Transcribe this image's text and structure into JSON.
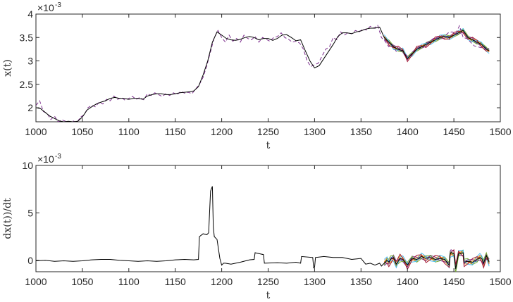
{
  "chart_data": [
    {
      "type": "line",
      "xlabel": "t",
      "ylabel": "x(t)",
      "xlim": [
        1000,
        1500
      ],
      "ylim": [
        1.7,
        4.0
      ],
      "x_ticks": [
        "1000",
        "1050",
        "1100",
        "1150",
        "1200",
        "1250",
        "1300",
        "1350",
        "1400",
        "1450",
        "1500"
      ],
      "y_ticks": [
        "2",
        "2.5",
        "3",
        "3.5",
        "4"
      ],
      "y_ticks_values": [
        2,
        2.5,
        3,
        3.5,
        4
      ],
      "exponent_base": "×10",
      "exponent_power": "-3",
      "grid": false,
      "series": [
        {
          "color": "#000000",
          "style": "solid",
          "x": [
            1000,
            1005,
            1010,
            1015,
            1020,
            1025,
            1030,
            1035,
            1040,
            1045,
            1050,
            1055,
            1060,
            1065,
            1070,
            1075,
            1080,
            1085,
            1090,
            1095,
            1100,
            1105,
            1110,
            1115,
            1120,
            1125,
            1130,
            1135,
            1140,
            1145,
            1150,
            1155,
            1160,
            1165,
            1170,
            1175,
            1180,
            1185,
            1190,
            1195,
            1200,
            1205,
            1210,
            1215,
            1220,
            1225,
            1230,
            1235,
            1240,
            1245,
            1250,
            1255,
            1260,
            1265,
            1270,
            1275,
            1280,
            1285,
            1290,
            1295,
            1300,
            1305,
            1310,
            1315,
            1320,
            1325,
            1330,
            1335,
            1340,
            1345,
            1350,
            1355,
            1360,
            1365,
            1370,
            1375,
            1380,
            1385,
            1390,
            1395,
            1400,
            1405,
            1410,
            1415,
            1420,
            1425,
            1430,
            1435,
            1440,
            1445,
            1450,
            1455,
            1460,
            1465,
            1470,
            1475,
            1480,
            1485,
            1488
          ],
          "values": [
            2.0,
            1.98,
            1.9,
            1.82,
            1.77,
            1.72,
            1.7,
            1.71,
            1.7,
            1.71,
            1.8,
            1.95,
            2.02,
            2.08,
            2.12,
            2.15,
            2.2,
            2.22,
            2.2,
            2.2,
            2.18,
            2.2,
            2.2,
            2.18,
            2.25,
            2.28,
            2.3,
            2.3,
            2.28,
            2.28,
            2.3,
            2.32,
            2.33,
            2.34,
            2.36,
            2.45,
            2.7,
            3.0,
            3.4,
            3.62,
            3.55,
            3.48,
            3.45,
            3.44,
            3.46,
            3.5,
            3.52,
            3.5,
            3.45,
            3.48,
            3.48,
            3.44,
            3.48,
            3.55,
            3.56,
            3.5,
            3.43,
            3.45,
            3.22,
            3.0,
            2.85,
            2.9,
            3.05,
            3.2,
            3.35,
            3.52,
            3.6,
            3.6,
            3.58,
            3.62,
            3.64,
            3.68,
            3.7,
            3.7,
            3.72,
            3.5,
            3.4,
            3.3,
            3.25,
            3.22,
            3.05,
            3.15,
            3.25,
            3.3,
            3.35,
            3.4,
            3.45,
            3.5,
            3.52,
            3.5,
            3.55,
            3.6,
            3.65,
            3.5,
            3.45,
            3.4,
            3.35,
            3.25,
            3.22
          ]
        },
        {
          "color": "#7E2F8E",
          "style": "dashed",
          "x": [
            1000,
            1004,
            1008,
            1012,
            1016,
            1020,
            1024,
            1028,
            1032,
            1036,
            1040,
            1044,
            1048,
            1052,
            1056,
            1060,
            1064,
            1068,
            1072,
            1076,
            1080,
            1084,
            1088,
            1092,
            1096,
            1100,
            1104,
            1108,
            1112,
            1116,
            1120,
            1124,
            1128,
            1132,
            1136,
            1140,
            1144,
            1148,
            1152,
            1156,
            1160,
            1164,
            1168,
            1172,
            1176,
            1180,
            1184,
            1188,
            1192,
            1196,
            1200,
            1204,
            1208,
            1212,
            1216,
            1220,
            1224,
            1228,
            1232,
            1236,
            1240,
            1244,
            1248,
            1252,
            1256,
            1260,
            1264,
            1268,
            1272,
            1276,
            1280,
            1284,
            1288,
            1292,
            1296,
            1300,
            1304,
            1308,
            1312,
            1316,
            1320,
            1324,
            1328,
            1332,
            1336,
            1340,
            1344,
            1348,
            1352,
            1356,
            1360,
            1364,
            1368,
            1372,
            1376,
            1380,
            1384,
            1388,
            1392,
            1396,
            1400,
            1404,
            1408,
            1412,
            1416,
            1420,
            1424,
            1428,
            1432,
            1436,
            1440,
            1444,
            1448,
            1452,
            1456,
            1460,
            1464,
            1468,
            1472,
            1476,
            1480,
            1484,
            1488
          ],
          "values": [
            2.05,
            2.15,
            1.92,
            1.88,
            1.75,
            1.82,
            1.7,
            1.74,
            1.71,
            1.69,
            1.72,
            1.68,
            1.8,
            1.85,
            2.0,
            2.05,
            2.02,
            2.12,
            2.08,
            2.18,
            2.15,
            2.25,
            2.18,
            2.22,
            2.16,
            2.2,
            2.24,
            2.18,
            2.22,
            2.17,
            2.3,
            2.26,
            2.32,
            2.28,
            2.24,
            2.3,
            2.26,
            2.32,
            2.28,
            2.35,
            2.31,
            2.33,
            2.3,
            2.4,
            2.5,
            2.65,
            2.9,
            3.2,
            3.5,
            3.65,
            3.5,
            3.4,
            3.55,
            3.42,
            3.48,
            3.4,
            3.55,
            3.48,
            3.45,
            3.52,
            3.4,
            3.5,
            3.46,
            3.42,
            3.5,
            3.52,
            3.6,
            3.5,
            3.46,
            3.4,
            3.42,
            3.38,
            3.25,
            3.0,
            2.88,
            2.92,
            2.95,
            3.1,
            3.25,
            3.3,
            3.5,
            3.45,
            3.62,
            3.55,
            3.6,
            3.58,
            3.65,
            3.62,
            3.68,
            3.66,
            3.74,
            3.7,
            3.76,
            3.5,
            3.42,
            3.3,
            3.35,
            3.2,
            3.28,
            3.18,
            3.1,
            3.12,
            3.2,
            3.3,
            3.28,
            3.38,
            3.42,
            3.48,
            3.5,
            3.54,
            3.52,
            3.6,
            3.62,
            3.58,
            3.75,
            3.5,
            3.48,
            3.4,
            3.32,
            3.3,
            3.28,
            3.25,
            3.24
          ]
        }
      ],
      "forecast_ensemble": {
        "x_start": 1375,
        "x_end": 1490,
        "colors": [
          "#0072BD",
          "#D95319",
          "#EDB120",
          "#7E2F8E",
          "#77AC30",
          "#4DBEEE",
          "#A2142F"
        ]
      }
    },
    {
      "type": "line",
      "xlabel": "t",
      "ylabel": "dx(t))/dt",
      "xlim": [
        1000,
        1500
      ],
      "ylim": [
        -1.2,
        10
      ],
      "x_ticks": [
        "1000",
        "1050",
        "1100",
        "1150",
        "1200",
        "1250",
        "1300",
        "1350",
        "1400",
        "1450",
        "1500"
      ],
      "y_ticks": [
        "0",
        "5",
        "10"
      ],
      "y_ticks_values": [
        0,
        5,
        10
      ],
      "exponent_base": "×10",
      "exponent_power": "-3",
      "grid": false,
      "series": [
        {
          "color": "#000000",
          "style": "solid",
          "x": [
            1000,
            1010,
            1020,
            1030,
            1040,
            1050,
            1060,
            1070,
            1080,
            1090,
            1100,
            1110,
            1120,
            1130,
            1140,
            1150,
            1160,
            1170,
            1175,
            1176,
            1180,
            1184,
            1186,
            1188,
            1190,
            1191,
            1192,
            1195,
            1198,
            1200,
            1202,
            1204,
            1210,
            1220,
            1230,
            1235,
            1236,
            1245,
            1246,
            1260,
            1270,
            1280,
            1285,
            1286,
            1298,
            1299,
            1300,
            1301,
            1310,
            1320,
            1330,
            1340,
            1350,
            1355,
            1360,
            1365,
            1370,
            1372,
            1375,
            1378,
            1380,
            1382,
            1385,
            1388,
            1392,
            1395,
            1400,
            1405,
            1410,
            1415,
            1420,
            1425,
            1430,
            1435,
            1440,
            1445,
            1446,
            1447,
            1450,
            1452,
            1455,
            1460,
            1461,
            1465,
            1470,
            1475,
            1478,
            1480,
            1482,
            1485,
            1488
          ],
          "values": [
            -0.05,
            0.0,
            -0.1,
            -0.05,
            -0.1,
            -0.05,
            0.05,
            0.1,
            0.1,
            0.0,
            -0.05,
            -0.1,
            -0.05,
            -0.1,
            -0.05,
            0.05,
            0.1,
            0.05,
            0.1,
            2.5,
            2.8,
            2.7,
            2.9,
            7.3,
            7.8,
            3.5,
            2.5,
            2.2,
            0.2,
            -0.5,
            -0.3,
            -0.3,
            -0.4,
            -0.2,
            0.05,
            0.1,
            0.8,
            0.6,
            -0.3,
            -0.25,
            -0.3,
            -0.2,
            -0.3,
            0.4,
            0.3,
            -0.8,
            -0.75,
            0.3,
            0.4,
            0.3,
            0.3,
            0.1,
            0.2,
            -0.4,
            -0.3,
            -0.5,
            -0.3,
            -0.6,
            -0.3,
            0.0,
            -0.2,
            0.1,
            0.3,
            -0.4,
            0.2,
            0.1,
            -0.5,
            0.2,
            0.1,
            0.4,
            0.2,
            0.3,
            0.1,
            0.2,
            0.1,
            -0.5,
            0.7,
            0.8,
            0.7,
            -0.9,
            0.7,
            0.8,
            -0.2,
            -0.1,
            -0.2,
            0.1,
            0.3,
            0.2,
            -0.3,
            0.5,
            -0.2
          ]
        }
      ],
      "forecast_ensemble": {
        "x_start": 1375,
        "x_end": 1490,
        "colors": [
          "#0072BD",
          "#D95319",
          "#EDB120",
          "#7E2F8E",
          "#77AC30",
          "#4DBEEE",
          "#A2142F"
        ]
      }
    }
  ]
}
